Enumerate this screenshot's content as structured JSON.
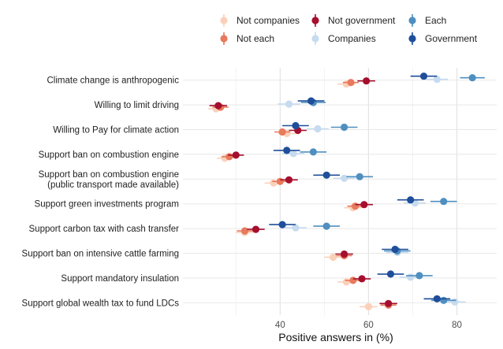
{
  "chart_data": {
    "type": "scatter",
    "subtype": "dot-whisker",
    "xlabel": "Positive answers in (%)",
    "ylabel": "",
    "xlim": [
      18,
      89
    ],
    "xticks": [
      40,
      60,
      80
    ],
    "grid": true,
    "legend_position": "top",
    "categories": [
      "Climate change is anthropogenic",
      "Willing to limit driving",
      "Willing to Pay for climate action",
      "Support ban on combustion engine",
      "Support ban on combustion engine\n(public transport made available)",
      "Support green investments program",
      "Support carbon tax with cash transfer",
      "Support ban on intensive cattle farming",
      "Support mandatory insulation",
      "Support global wealth tax to fund LDCs"
    ],
    "series": [
      {
        "name": "Not companies",
        "color": "#fbd0b9",
        "values": [
          55.0,
          25.5,
          41.5,
          27.5,
          38.5,
          56.5,
          32.0,
          52.0,
          55.0,
          60.0
        ],
        "ci": [
          2.0,
          1.8,
          2.0,
          1.8,
          2.0,
          2.0,
          2.0,
          2.0,
          2.0,
          2.0
        ]
      },
      {
        "name": "Not each",
        "color": "#e8795c",
        "values": [
          56.0,
          26.5,
          40.5,
          28.5,
          40.0,
          57.0,
          32.0,
          54.5,
          56.5,
          64.5
        ],
        "ci": [
          1.8,
          1.8,
          1.8,
          1.8,
          1.8,
          1.8,
          1.8,
          1.8,
          1.8,
          1.8
        ]
      },
      {
        "name": "Not government",
        "color": "#a50f2d",
        "values": [
          59.5,
          26.0,
          44.0,
          30.0,
          42.0,
          59.0,
          34.5,
          54.5,
          58.5,
          64.5
        ],
        "ci": [
          2.0,
          2.0,
          2.0,
          1.8,
          2.0,
          2.0,
          2.0,
          2.0,
          2.0,
          2.0
        ]
      },
      {
        "name": "Companies",
        "color": "#c6dbef",
        "values": [
          75.5,
          42.0,
          48.5,
          43.0,
          54.5,
          70.5,
          43.5,
          66.5,
          69.5,
          79.5
        ],
        "ci": [
          2.5,
          2.5,
          2.5,
          2.5,
          2.5,
          2.5,
          2.5,
          2.5,
          2.5,
          2.5
        ]
      },
      {
        "name": "Each",
        "color": "#4f8fc0",
        "values": [
          83.5,
          47.5,
          54.5,
          47.5,
          58.0,
          77.0,
          50.5,
          66.5,
          71.5,
          77.0
        ],
        "ci": [
          2.8,
          2.8,
          3.0,
          3.0,
          3.0,
          3.0,
          3.0,
          3.0,
          3.0,
          2.8
        ]
      },
      {
        "name": "Government",
        "color": "#1f4e9a",
        "values": [
          72.5,
          47.0,
          43.5,
          41.5,
          50.5,
          69.5,
          40.5,
          66.0,
          65.0,
          75.5
        ],
        "ci": [
          3.0,
          3.0,
          3.0,
          3.0,
          3.0,
          3.0,
          3.0,
          3.0,
          3.0,
          3.0
        ]
      }
    ]
  }
}
